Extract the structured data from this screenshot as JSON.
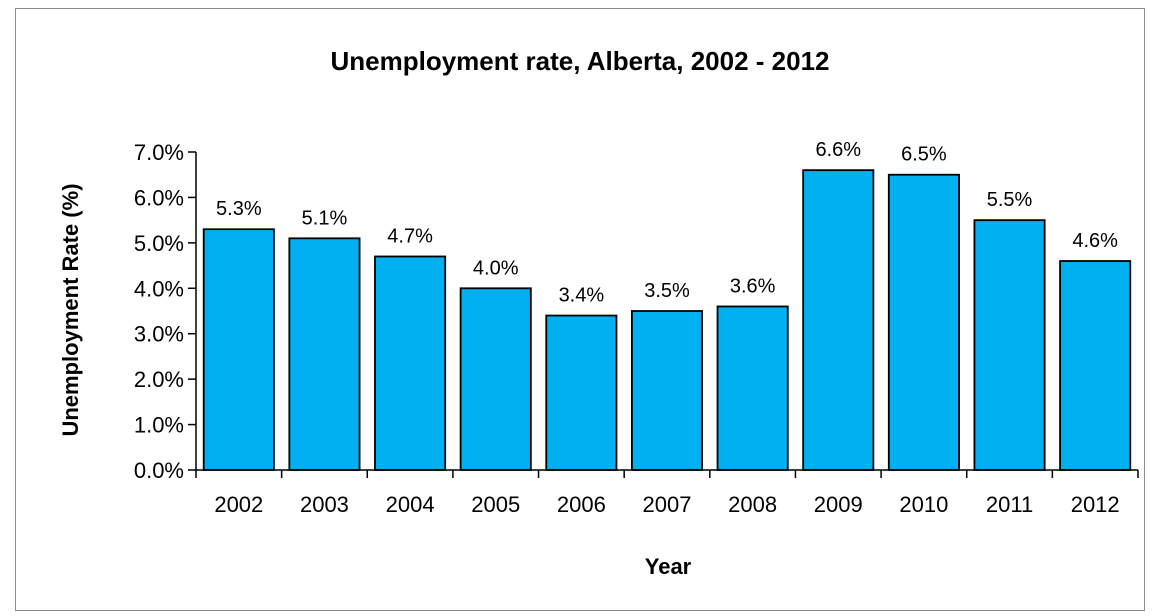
{
  "chart_data": {
    "type": "bar",
    "title": "Unemployment rate, Alberta, 2002 - 2012",
    "xlabel": "Year",
    "ylabel": "Unemployment Rate (%)",
    "categories": [
      "2002",
      "2003",
      "2004",
      "2005",
      "2006",
      "2007",
      "2008",
      "2009",
      "2010",
      "2011",
      "2012"
    ],
    "values": [
      5.3,
      5.1,
      4.7,
      4.0,
      3.4,
      3.5,
      3.6,
      6.6,
      6.5,
      5.5,
      4.6
    ],
    "data_labels": [
      "5.3%",
      "5.1%",
      "4.7%",
      "4.0%",
      "3.4%",
      "3.5%",
      "3.6%",
      "6.6%",
      "6.5%",
      "5.5%",
      "4.6%"
    ],
    "ylim": [
      0,
      7
    ],
    "yticks": [
      0,
      1,
      2,
      3,
      4,
      5,
      6,
      7
    ],
    "ytick_labels": [
      "0.0%",
      "1.0%",
      "2.0%",
      "3.0%",
      "4.0%",
      "5.0%",
      "6.0%",
      "7.0%"
    ],
    "grid": false,
    "legend": "none",
    "bar_color": "#00B0F0",
    "bar_edge_color": "#000000"
  }
}
